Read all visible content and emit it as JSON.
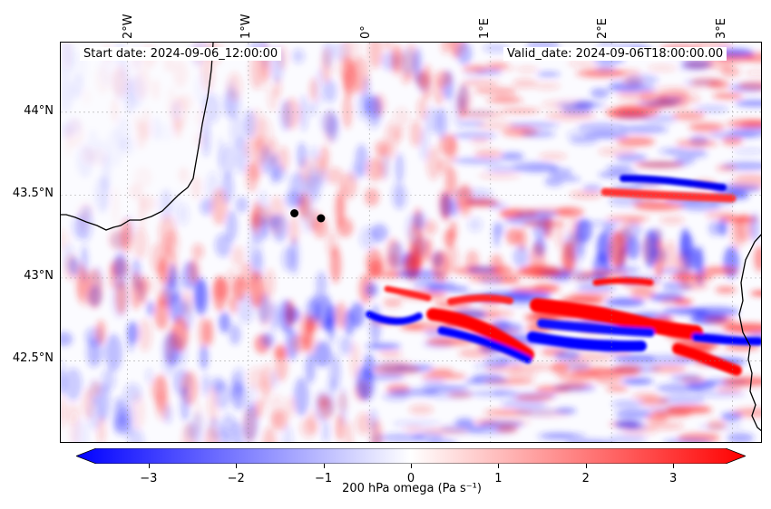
{
  "header": {
    "start_date": "Start date: 2024-09-06_12:00:00",
    "valid_date": "Valid_date: 2024-09-06T18:00:00.00"
  },
  "map": {
    "lon_labels": [
      "2°W",
      "1°W",
      "0°",
      "1°E",
      "2°E",
      "3°E"
    ],
    "lat_labels": [
      "44°N",
      "43.5°N",
      "43°N",
      "42.5°N"
    ],
    "extent": {
      "lon_min": -2.55,
      "lon_max": 3.25,
      "lat_min": 42.0,
      "lat_max": 44.42
    },
    "points": [
      {
        "lon": -0.62,
        "lat": 43.39
      },
      {
        "lon": -0.4,
        "lat": 43.36
      }
    ]
  },
  "colorbar": {
    "ticks": [
      "−3",
      "−2",
      "−1",
      "0",
      "1",
      "2",
      "3"
    ],
    "tick_values": [
      -3,
      -2,
      -1,
      0,
      1,
      2,
      3
    ],
    "range": [
      -3.6,
      3.6
    ],
    "label": "200 hPa omega (Pa s⁻¹)",
    "cmap": "bwr",
    "colors": {
      "low": "#0000ff",
      "mid": "#ffffff",
      "high": "#ff0000"
    }
  }
}
